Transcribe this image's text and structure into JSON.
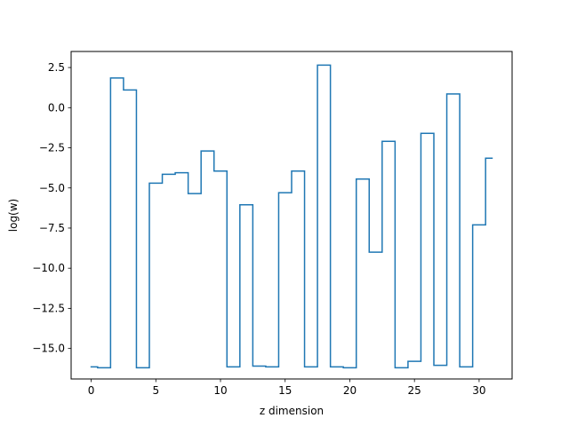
{
  "chart_data": {
    "type": "line",
    "drawstyle": "steps-mid",
    "title": "",
    "xlabel": "z dimension",
    "ylabel": "log(w)",
    "xlim": [
      -1.55,
      32.55
    ],
    "ylim": [
      -16.9,
      3.5
    ],
    "xticks": [
      0,
      5,
      10,
      15,
      20,
      25,
      30
    ],
    "xtick_labels": [
      "0",
      "5",
      "10",
      "15",
      "20",
      "25",
      "30"
    ],
    "yticks": [
      2.5,
      0.0,
      -2.5,
      -5.0,
      -7.5,
      -10.0,
      -12.5,
      -15.0
    ],
    "ytick_labels": [
      "2.5",
      "0.0",
      "−2.5",
      "−5.0",
      "−7.5",
      "−10.0",
      "−12.5",
      "−15.0"
    ],
    "grid": false,
    "line_color": "#1f77b4",
    "series": [
      {
        "x": [
          0,
          1,
          2,
          3,
          4,
          5,
          6,
          7,
          8,
          9,
          10,
          11,
          12,
          13,
          14,
          15,
          16,
          17,
          18,
          19,
          20,
          21,
          22,
          23,
          24,
          25,
          26,
          27,
          28,
          29,
          30,
          31
        ],
        "values": [
          -16.15,
          -16.2,
          1.85,
          1.1,
          -16.2,
          -4.7,
          -4.15,
          -4.05,
          -5.35,
          -2.7,
          -3.95,
          -16.15,
          -6.05,
          -16.1,
          -16.15,
          -5.3,
          -3.95,
          -16.15,
          2.65,
          -16.15,
          -16.2,
          -4.45,
          -9.0,
          -2.1,
          -16.2,
          -15.8,
          -1.6,
          -16.05,
          0.85,
          -16.15,
          -7.3,
          -3.15
        ]
      }
    ]
  }
}
